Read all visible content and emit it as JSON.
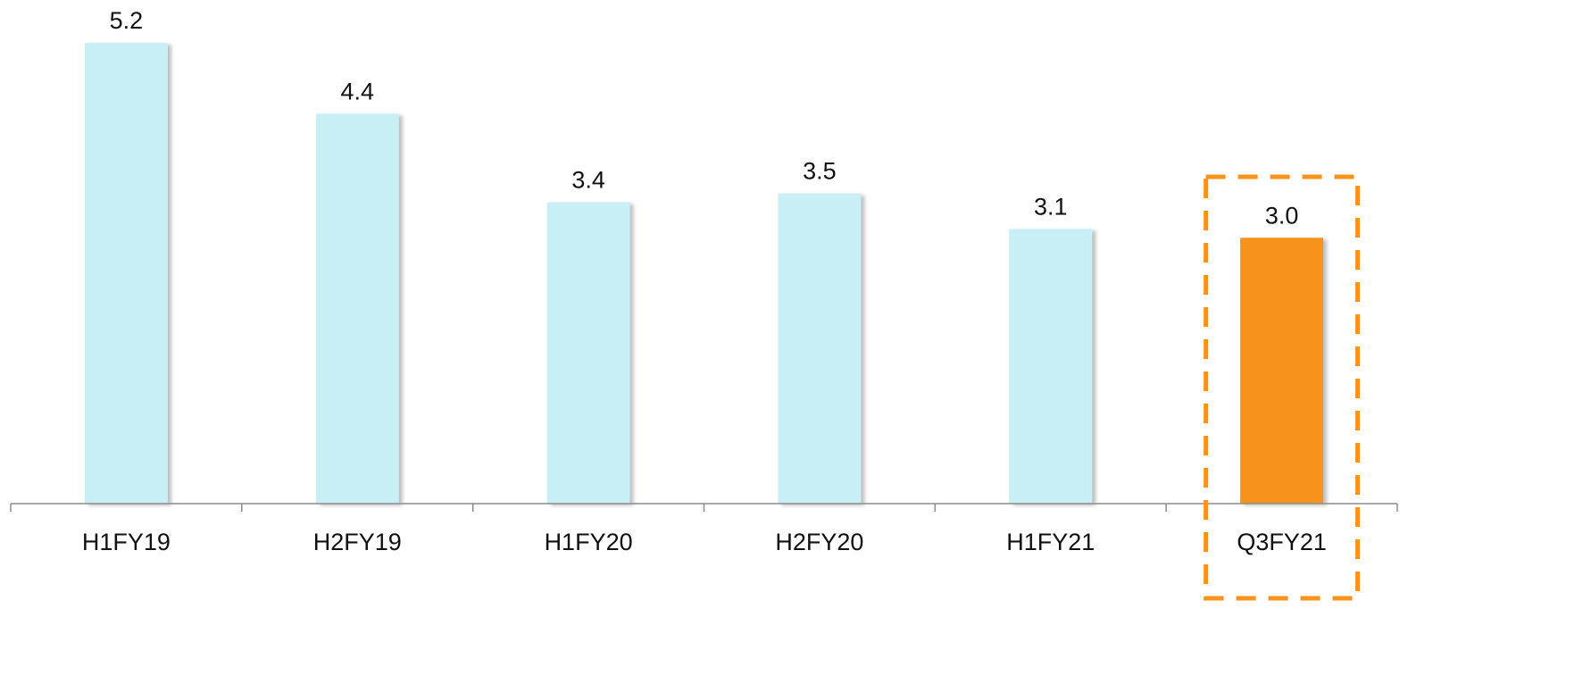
{
  "chart_data": {
    "type": "bar",
    "categories": [
      "H1FY19",
      "H2FY19",
      "H1FY20",
      "H2FY20",
      "H1FY21",
      "Q3FY21"
    ],
    "values": [
      5.2,
      4.4,
      3.4,
      3.5,
      3.1,
      3.0
    ],
    "value_labels": [
      "5.2",
      "4.4",
      "3.4",
      "3.5",
      "3.1",
      "3.0"
    ],
    "highlight_index": 5,
    "colors": {
      "default_bar": "#c8eef6",
      "highlight_bar": "#f7931e",
      "highlight_box": "#f7931e",
      "axis": "#8c8c8c",
      "shadow": "#9a9a9a"
    },
    "title": "",
    "xlabel": "",
    "ylabel": "",
    "ylim": [
      0,
      5.2
    ],
    "grid": false,
    "legend": "none"
  }
}
